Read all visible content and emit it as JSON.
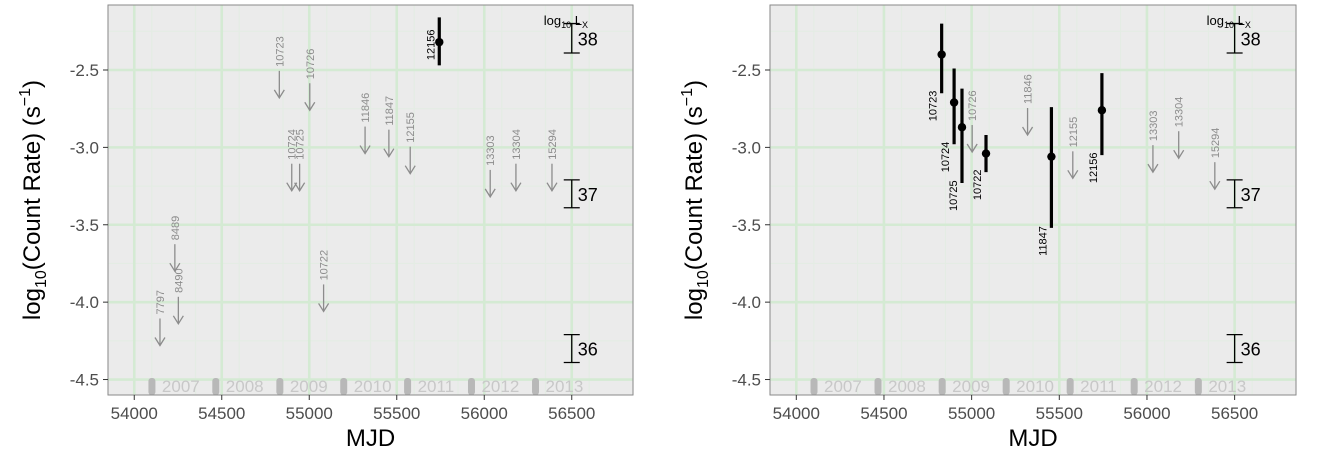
{
  "colors": {
    "panel_bg": "#ebebeb",
    "grid_major": "#d4ead3",
    "grid_minor": "#e4ece4",
    "detection": "#000000",
    "upper_limit": "#8c8c8c",
    "year_label": "#c8c8c8",
    "year_marker": "#b8b8b8"
  },
  "chart_data": [
    {
      "type": "scatter",
      "panel": "left",
      "xlabel": "MJD",
      "ylabel_main": "log",
      "ylabel_sub": "10",
      "ylabel_rest": "(Count Rate) (s",
      "ylabel_sup": "−1",
      "ylabel_end": ")",
      "xlim": [
        53850,
        56850
      ],
      "ylim": [
        -4.6,
        -2.08
      ],
      "x_ticks": [
        54000,
        54500,
        55000,
        55500,
        56000,
        56500
      ],
      "x_tick_labels": [
        "54000",
        "54500",
        "55000",
        "55500",
        "56000",
        "56500"
      ],
      "y_ticks": [
        -4.5,
        -4.0,
        -3.5,
        -3.0,
        -2.5
      ],
      "y_tick_labels": [
        "-4.5",
        "-4.0",
        "-3.5",
        "-3.0",
        "-2.5"
      ],
      "grid": true,
      "years": [
        {
          "label": "2007",
          "mjd": 54101
        },
        {
          "label": "2008",
          "mjd": 54466
        },
        {
          "label": "2009",
          "mjd": 54832
        },
        {
          "label": "2010",
          "mjd": 55197
        },
        {
          "label": "2011",
          "mjd": 55562
        },
        {
          "label": "2012",
          "mjd": 55927
        },
        {
          "label": "2013",
          "mjd": 56293
        }
      ],
      "lx_scale": {
        "title_main": "log",
        "title_sub": "10",
        "title_rest": " L",
        "title_subX": "X",
        "mjd": 56500,
        "brackets": [
          {
            "label": "38",
            "y_top": -2.2,
            "y_bottom": -2.39
          },
          {
            "label": "37",
            "y_top": -3.21,
            "y_bottom": -3.39
          },
          {
            "label": "36",
            "y_top": -4.21,
            "y_bottom": -4.39
          }
        ]
      },
      "detections": [
        {
          "obsid": "12156",
          "x": 55743,
          "y": -2.32,
          "y_low": -2.47,
          "y_high": -2.16
        }
      ],
      "upper_limits": [
        {
          "obsid": "7797",
          "x": 54147,
          "y": -4.28
        },
        {
          "obsid": "8489",
          "x": 54232,
          "y": -3.8
        },
        {
          "obsid": "8490",
          "x": 54252,
          "y": -4.14
        },
        {
          "obsid": "10723",
          "x": 54829,
          "y": -2.68
        },
        {
          "obsid": "10726",
          "x": 55003,
          "y": -2.76
        },
        {
          "obsid": "10724",
          "x": 54900,
          "y": -3.28
        },
        {
          "obsid": "10725",
          "x": 54945,
          "y": -3.28
        },
        {
          "obsid": "10722",
          "x": 55082,
          "y": -4.06
        },
        {
          "obsid": "11846",
          "x": 55319,
          "y": -3.04
        },
        {
          "obsid": "11847",
          "x": 55455,
          "y": -3.06
        },
        {
          "obsid": "12155",
          "x": 55577,
          "y": -3.17
        },
        {
          "obsid": "13303",
          "x": 56034,
          "y": -3.32
        },
        {
          "obsid": "13304",
          "x": 56181,
          "y": -3.28
        },
        {
          "obsid": "15294",
          "x": 56387,
          "y": -3.28
        }
      ]
    },
    {
      "type": "scatter",
      "panel": "right",
      "xlabel": "MJD",
      "ylabel_main": "log",
      "ylabel_sub": "10",
      "ylabel_rest": "(Count Rate) (s",
      "ylabel_sup": "−1",
      "ylabel_end": ")",
      "xlim": [
        53850,
        56850
      ],
      "ylim": [
        -4.6,
        -2.08
      ],
      "x_ticks": [
        54000,
        54500,
        55000,
        55500,
        56000,
        56500
      ],
      "x_tick_labels": [
        "54000",
        "54500",
        "55000",
        "55500",
        "56000",
        "56500"
      ],
      "y_ticks": [
        -4.5,
        -4.0,
        -3.5,
        -3.0,
        -2.5
      ],
      "y_tick_labels": [
        "-4.5",
        "-4.0",
        "-3.5",
        "-3.0",
        "-2.5"
      ],
      "grid": true,
      "years": [
        {
          "label": "2007",
          "mjd": 54101
        },
        {
          "label": "2008",
          "mjd": 54466
        },
        {
          "label": "2009",
          "mjd": 54832
        },
        {
          "label": "2010",
          "mjd": 55197
        },
        {
          "label": "2011",
          "mjd": 55562
        },
        {
          "label": "2012",
          "mjd": 55927
        },
        {
          "label": "2013",
          "mjd": 56293
        }
      ],
      "lx_scale": {
        "title_main": "log",
        "title_sub": "10",
        "title_rest": " L",
        "title_subX": "X",
        "mjd": 56500,
        "brackets": [
          {
            "label": "38",
            "y_top": -2.2,
            "y_bottom": -2.39
          },
          {
            "label": "37",
            "y_top": -3.21,
            "y_bottom": -3.39
          },
          {
            "label": "36",
            "y_top": -4.21,
            "y_bottom": -4.39
          }
        ]
      },
      "detections": [
        {
          "obsid": "10723",
          "x": 54829,
          "y": -2.4,
          "y_low": -2.65,
          "y_high": -2.2
        },
        {
          "obsid": "10724",
          "x": 54900,
          "y": -2.71,
          "y_low": -2.98,
          "y_high": -2.49
        },
        {
          "obsid": "10725",
          "x": 54945,
          "y": -2.87,
          "y_low": -3.23,
          "y_high": -2.62
        },
        {
          "obsid": "10722",
          "x": 55082,
          "y": -3.04,
          "y_low": -3.16,
          "y_high": -2.92
        },
        {
          "obsid": "11847",
          "x": 55455,
          "y": -3.06,
          "y_low": -3.52,
          "y_high": -2.74
        },
        {
          "obsid": "12156",
          "x": 55743,
          "y": -2.76,
          "y_low": -3.05,
          "y_high": -2.52
        }
      ],
      "upper_limits": [
        {
          "obsid": "10726",
          "x": 55003,
          "y": -3.03
        },
        {
          "obsid": "11846",
          "x": 55319,
          "y": -2.92
        },
        {
          "obsid": "12155",
          "x": 55577,
          "y": -3.2
        },
        {
          "obsid": "13303",
          "x": 56034,
          "y": -3.16
        },
        {
          "obsid": "13304",
          "x": 56181,
          "y": -3.07
        },
        {
          "obsid": "15294",
          "x": 56387,
          "y": -3.27
        }
      ]
    }
  ]
}
